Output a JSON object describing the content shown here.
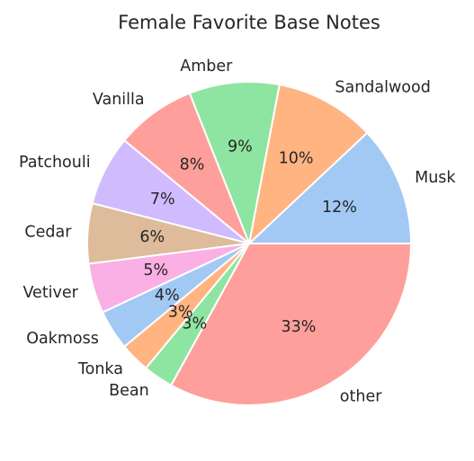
{
  "chart_data": {
    "type": "pie",
    "title": "Female Favorite Base Notes",
    "labels": [
      "Musk",
      "Sandalwood",
      "Amber",
      "Vanilla",
      "Patchouli",
      "Cedar",
      "Vetiver",
      "Oakmoss",
      "Tonka",
      "Bean",
      "other"
    ],
    "values": [
      12,
      10,
      9,
      8,
      7,
      6,
      5,
      4,
      3,
      3,
      33
    ],
    "pct_labels": [
      "12%",
      "10%",
      "9%",
      "8%",
      "7%",
      "6%",
      "5%",
      "4%",
      "3%",
      "3%",
      "33%"
    ],
    "colors": [
      "#a1c9f4",
      "#ffb482",
      "#8de5a1",
      "#ff9f9b",
      "#d0bbff",
      "#debb9b",
      "#fab0e4",
      "#a1c9f4",
      "#ffb482",
      "#8de5a1",
      "#ff9f9b"
    ],
    "start_angle_deg": 0,
    "direction": "counterclockwise",
    "legend": "none"
  }
}
